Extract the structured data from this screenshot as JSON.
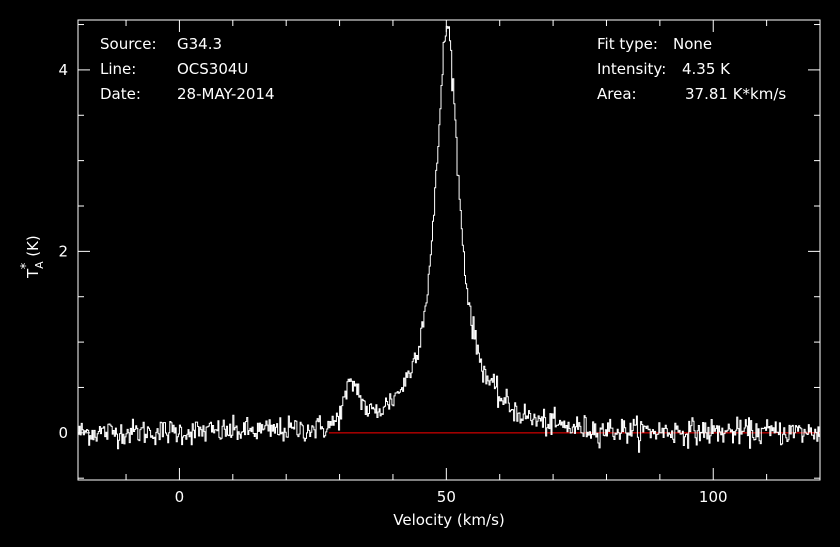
{
  "header": {
    "left": [
      {
        "key": "Source:",
        "value": "G34.3"
      },
      {
        "key": "Line:",
        "value": "OCS304U"
      },
      {
        "key": "Date:",
        "value": "28-MAY-2014"
      }
    ],
    "right": [
      {
        "key": "Fit type:",
        "value": "None"
      },
      {
        "key": "Intensity:",
        "value": "4.35 K"
      },
      {
        "key": "Area:",
        "value": "37.81 K*km/s"
      }
    ]
  },
  "colors": {
    "background": "#000000",
    "foreground": "#ffffff",
    "baseline": "#ff0000"
  },
  "chart_data": {
    "type": "line",
    "xlabel": "Velocity (km/s)",
    "ylabel_main": "T",
    "ylabel_sup": "*",
    "ylabel_sub": "A",
    "ylabel_unit": "(K)",
    "xlim": [
      -19,
      120
    ],
    "ylim": [
      -0.52,
      4.55
    ],
    "xticks": [
      0,
      50,
      100
    ],
    "xtick_labels": [
      "0",
      "50",
      "100"
    ],
    "yticks": [
      0,
      2,
      4
    ],
    "ytick_labels": [
      "0",
      "2",
      "4"
    ],
    "baseline": {
      "y": 0,
      "x_start": 28,
      "x_end": 120
    },
    "series": [
      {
        "style": "histogram-step",
        "components": [
          {
            "center": 50.2,
            "peak": 4.25,
            "hwhm": 2.6,
            "shape": "lorentzian"
          },
          {
            "center": 32.4,
            "peak": 0.42,
            "sigma": 1.5,
            "shape": "gaussian"
          },
          {
            "center": 50.0,
            "peak": 0.22,
            "sigma": 9.0,
            "shape": "gaussian"
          }
        ],
        "noise_rms": 0.07,
        "channel_width": 0.2
      }
    ],
    "grid": false,
    "legend": "none"
  }
}
